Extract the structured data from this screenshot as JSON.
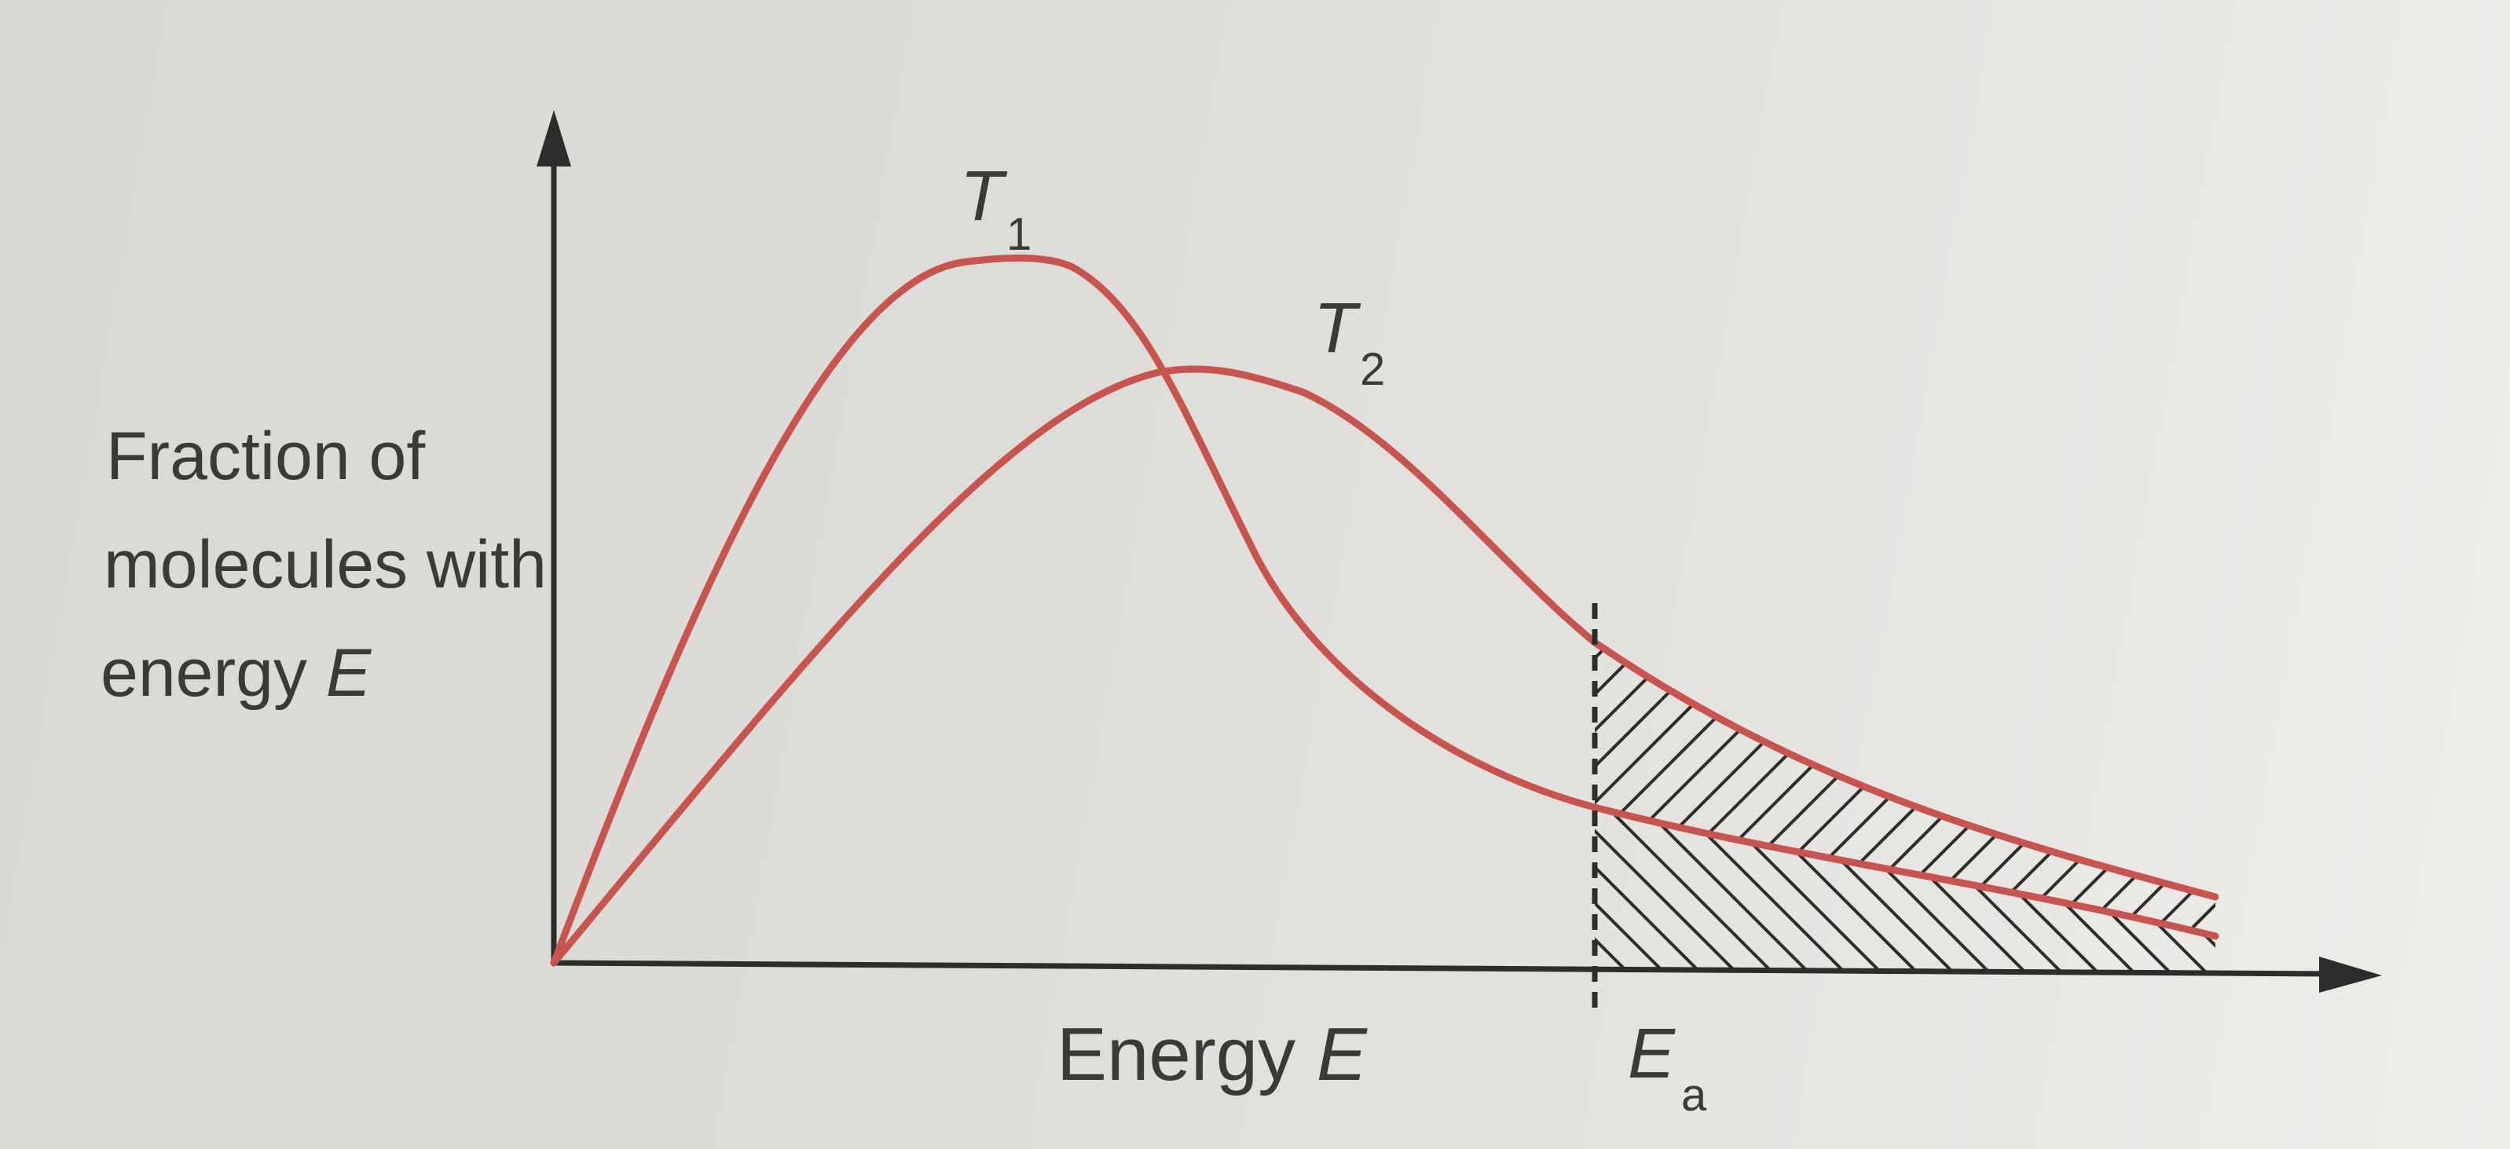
{
  "figure": {
    "y_axis_label_lines": [
      "Fraction of",
      "molecules with",
      "energy "
    ],
    "y_axis_label_var": "E",
    "x_axis_label_text": "Energy ",
    "x_axis_label_var": "E",
    "curves": [
      {
        "var": "T",
        "sub": "1",
        "color": "#c85450"
      },
      {
        "var": "T",
        "sub": "2",
        "color": "#c85450"
      }
    ],
    "threshold": {
      "var": "E",
      "sub": "a"
    },
    "colors": {
      "axis": "#2e2d2b",
      "curve": "#c85450",
      "hatch": "#2e2d2b",
      "background": "#dcdbd7"
    },
    "icons": [
      "y-axis-arrowhead",
      "x-axis-arrowhead"
    ]
  }
}
